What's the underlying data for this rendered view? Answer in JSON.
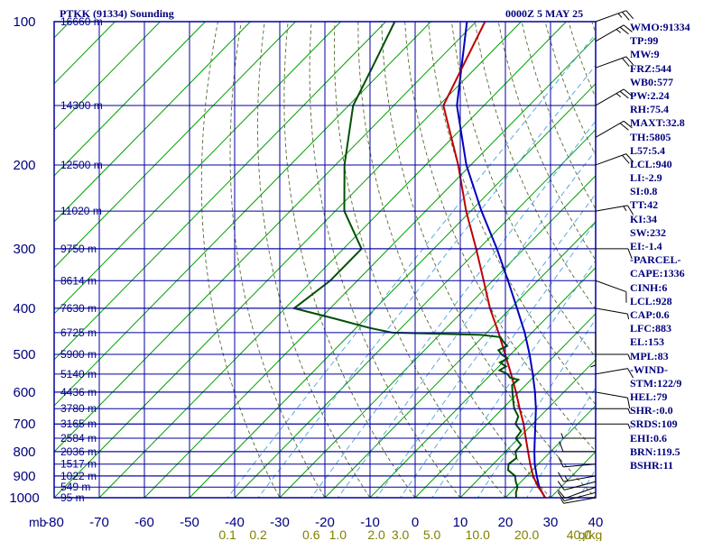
{
  "header": {
    "station": "PTKK (91334) Sounding",
    "time": "0000Z  5 MAY 25"
  },
  "indices": [
    "WMO:91334",
    "TP:99",
    "MW:9",
    "FRZ:544",
    "WB0:577",
    "PW:2.24",
    "RH:75.4",
    "MAXT:32.8",
    "TH:5805",
    "L57:5.4",
    "LCL:940",
    "LI:-2.9",
    "SI:0.8",
    "TT:42",
    "KI:34",
    "SW:232",
    "EI:-1.4",
    "-PARCEL-",
    "CAPE:1336",
    "CINH:6",
    "LCL:928",
    "CAP:0.6",
    "LFC:883",
    "EL:153",
    "MPL:83",
    "-WIND-",
    "STM:122/9",
    "HEL:79",
    "SHR-:0.0",
    "SRDS:109",
    "EHI:0.6",
    "BRN:119.5",
    "BSHR:11"
  ],
  "colors": {
    "grid": "#0000a0",
    "isotherm": "#00a000",
    "dry_adiabat": "#556b2f",
    "mixing_ratio": "#4aa0e0",
    "temperature": "#c00000",
    "parcel": "#0000c0",
    "dewpoint": "#005000",
    "text": "#000080",
    "mixing_label": "#808000",
    "wind": "#000000"
  },
  "chart_data": {
    "type": "line",
    "chart_kind": "Skew-T log-P sounding",
    "title": "PTKK (91334) Sounding",
    "subtitle": "0000Z  5 MAY 25",
    "y_scale": "log",
    "ylim": [
      1000,
      100
    ],
    "xlim": [
      -80,
      40
    ],
    "y_ticks": [
      100,
      200,
      300,
      400,
      500,
      600,
      700,
      800,
      900,
      1000
    ],
    "x_ticks": [
      -80,
      -70,
      -60,
      -50,
      -40,
      -30,
      -20,
      -10,
      0,
      10,
      20,
      30,
      40
    ],
    "x_axis_unit": "mb",
    "mixing_ratio_labels": [
      "0.1",
      "0.2",
      "0.6",
      "1.0",
      "2.0",
      "3.0",
      "5.0",
      "10.0",
      "20.0",
      "40.0"
    ],
    "mixing_ratio_unit": "g/kg",
    "height_labels": [
      {
        "p": 100,
        "label": "16660 m"
      },
      {
        "p": 150,
        "label": "14300 m"
      },
      {
        "p": 200,
        "label": "12500 m"
      },
      {
        "p": 250,
        "label": "11020 m"
      },
      {
        "p": 300,
        "label": "9750 m"
      },
      {
        "p": 350,
        "label": "8614 m"
      },
      {
        "p": 400,
        "label": "7630 m"
      },
      {
        "p": 450,
        "label": "6725 m"
      },
      {
        "p": 500,
        "label": "5900 m"
      },
      {
        "p": 550,
        "label": "5140 m"
      },
      {
        "p": 600,
        "label": "4436 m"
      },
      {
        "p": 650,
        "label": "3780 m"
      },
      {
        "p": 700,
        "label": "3165 m"
      },
      {
        "p": 750,
        "label": "2584 m"
      },
      {
        "p": 800,
        "label": "2036 m"
      },
      {
        "p": 850,
        "label": "1517 m"
      },
      {
        "p": 900,
        "label": "1022 m"
      },
      {
        "p": 950,
        "label": "549 m"
      },
      {
        "p": 1000,
        "label": "95 m"
      }
    ],
    "series": [
      {
        "name": "Temperature",
        "p": [
          1000,
          975,
          950,
          925,
          900,
          850,
          800,
          750,
          700,
          650,
          600,
          550,
          500,
          450,
          400,
          350,
          300,
          250,
          200,
          150,
          100
        ],
        "t": [
          28.8,
          27.0,
          25.0,
          23.2,
          21.4,
          18.2,
          15.0,
          11.6,
          8.0,
          3.8,
          -0.6,
          -5.6,
          -11.2,
          -17.4,
          -24.6,
          -32.0,
          -40.6,
          -51.0,
          -62.8,
          -79.0,
          -88.0
        ]
      },
      {
        "name": "Parcel",
        "p": [
          1000,
          950,
          900,
          850,
          800,
          750,
          700,
          650,
          600,
          550,
          500,
          450,
          400,
          350,
          300,
          250,
          200,
          150,
          100
        ],
        "t": [
          28.8,
          25.2,
          22.2,
          19.2,
          16.4,
          13.6,
          10.6,
          7.4,
          3.6,
          -0.8,
          -5.8,
          -11.6,
          -18.6,
          -26.6,
          -36.0,
          -47.6,
          -61.0,
          -76.0,
          -92.0
        ]
      },
      {
        "name": "Dewpoint",
        "p": [
          1000,
          975,
          950,
          925,
          900,
          875,
          850,
          825,
          800,
          775,
          750,
          725,
          700,
          675,
          650,
          625,
          600,
          580,
          565,
          560,
          550,
          540,
          530,
          520,
          510,
          500,
          490,
          480,
          470,
          460,
          455,
          450,
          440,
          420,
          400,
          350,
          300,
          250,
          200,
          150,
          125,
          100
        ],
        "t": [
          22.4,
          21.2,
          20.4,
          18.8,
          17.4,
          14.6,
          13.4,
          13.8,
          12.2,
          12.0,
          9.4,
          9.0,
          6.2,
          5.2,
          2.6,
          0.6,
          -1.4,
          -3.0,
          -2.8,
          -5.0,
          -6.4,
          -9.0,
          -8.4,
          -10.6,
          -9.8,
          -12.0,
          -13.6,
          -12.6,
          -14.4,
          -16.0,
          -20.8,
          -41.0,
          -47.0,
          -57.0,
          -68.0,
          -66.0,
          -66.0,
          -78.0,
          -88.0,
          -99.0,
          -103.0,
          -108.0
        ]
      }
    ],
    "wind_barbs": [
      {
        "p": 1000,
        "dir": 260,
        "spd": 5
      },
      {
        "p": 975,
        "dir": 255,
        "spd": 10
      },
      {
        "p": 950,
        "dir": 250,
        "spd": 10
      },
      {
        "p": 925,
        "dir": 255,
        "spd": 10
      },
      {
        "p": 900,
        "dir": 260,
        "spd": 15
      },
      {
        "p": 850,
        "dir": 265,
        "spd": 10
      },
      {
        "p": 800,
        "dir": 270,
        "spd": 10
      },
      {
        "p": 750,
        "dir": 270,
        "spd": 5
      },
      {
        "p": 700,
        "dir": 90,
        "spd": 5
      },
      {
        "p": 650,
        "dir": 90,
        "spd": 5
      },
      {
        "p": 600,
        "dir": 100,
        "spd": 10
      },
      {
        "p": 550,
        "dir": 80,
        "spd": 10
      },
      {
        "p": 500,
        "dir": 90,
        "spd": 5
      },
      {
        "p": 450,
        "dir": 180,
        "spd": 5
      },
      {
        "p": 400,
        "dir": 100,
        "spd": 5
      },
      {
        "p": 350,
        "dir": 110,
        "spd": 10
      },
      {
        "p": 300,
        "dir": 90,
        "spd": 10
      },
      {
        "p": 250,
        "dir": 80,
        "spd": 15
      },
      {
        "p": 200,
        "dir": 70,
        "spd": 20
      },
      {
        "p": 175,
        "dir": 60,
        "spd": 20
      },
      {
        "p": 150,
        "dir": 60,
        "spd": 25
      },
      {
        "p": 125,
        "dir": 70,
        "spd": 20
      },
      {
        "p": 110,
        "dir": 60,
        "spd": 25
      },
      {
        "p": 100,
        "dir": 70,
        "spd": 25
      }
    ]
  }
}
